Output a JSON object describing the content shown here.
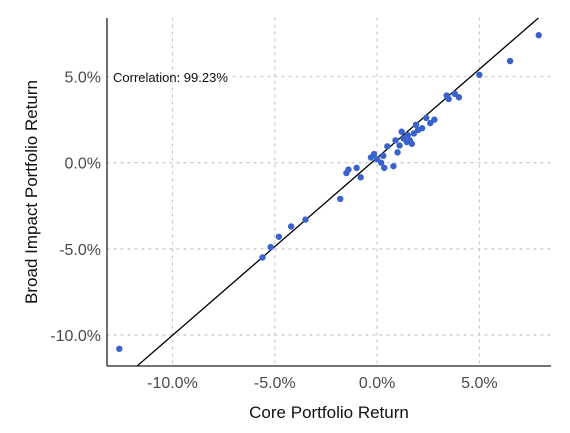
{
  "chart_data": {
    "type": "scatter",
    "xlabel": "Core Portfolio Return",
    "ylabel": "Broad Impact Portfolio Return",
    "annotation": "Correlation: 99.23%",
    "xlim": [
      -13.2,
      8.5
    ],
    "ylim": [
      -11.8,
      8.4
    ],
    "x_ticks": [
      {
        "value": -10,
        "label": "-10.0%"
      },
      {
        "value": -5,
        "label": "-5.0%"
      },
      {
        "value": 0,
        "label": "0.0%"
      },
      {
        "value": 5,
        "label": "5.0%"
      }
    ],
    "y_ticks": [
      {
        "value": -10,
        "label": "-10.0%"
      },
      {
        "value": -5,
        "label": "-5.0%"
      },
      {
        "value": 0,
        "label": "0.0%"
      },
      {
        "value": 5,
        "label": "5.0%"
      }
    ],
    "grid": true,
    "regression_line": {
      "slope": 1.03,
      "intercept": 0.28
    },
    "colors": {
      "points": "#3a62cc",
      "line": "#000000",
      "grid": "#c8c8c8"
    },
    "points": [
      {
        "x": -12.6,
        "y": -10.8
      },
      {
        "x": -5.6,
        "y": -5.5
      },
      {
        "x": -5.2,
        "y": -4.9
      },
      {
        "x": -4.8,
        "y": -4.3
      },
      {
        "x": -4.2,
        "y": -3.7
      },
      {
        "x": -3.5,
        "y": -3.3
      },
      {
        "x": -1.8,
        "y": -2.1
      },
      {
        "x": -1.5,
        "y": -0.6
      },
      {
        "x": -1.4,
        "y": -0.4
      },
      {
        "x": -1.0,
        "y": -0.3
      },
      {
        "x": -0.8,
        "y": -0.85
      },
      {
        "x": -0.3,
        "y": 0.3
      },
      {
        "x": -0.15,
        "y": 0.5
      },
      {
        "x": 0.0,
        "y": 0.2
      },
      {
        "x": 0.2,
        "y": 0.0
      },
      {
        "x": 0.3,
        "y": 0.4
      },
      {
        "x": 0.35,
        "y": -0.3
      },
      {
        "x": 0.5,
        "y": 0.95
      },
      {
        "x": 0.8,
        "y": -0.2
      },
      {
        "x": 0.9,
        "y": 1.3
      },
      {
        "x": 1.0,
        "y": 0.6
      },
      {
        "x": 1.1,
        "y": 1.0
      },
      {
        "x": 1.2,
        "y": 1.8
      },
      {
        "x": 1.3,
        "y": 1.4
      },
      {
        "x": 1.45,
        "y": 1.2
      },
      {
        "x": 1.5,
        "y": 1.6
      },
      {
        "x": 1.6,
        "y": 1.3
      },
      {
        "x": 1.7,
        "y": 1.1
      },
      {
        "x": 1.8,
        "y": 1.7
      },
      {
        "x": 1.9,
        "y": 2.2
      },
      {
        "x": 2.0,
        "y": 1.9
      },
      {
        "x": 2.2,
        "y": 2.0
      },
      {
        "x": 2.4,
        "y": 2.6
      },
      {
        "x": 2.6,
        "y": 2.3
      },
      {
        "x": 2.8,
        "y": 2.5
      },
      {
        "x": 3.4,
        "y": 3.9
      },
      {
        "x": 3.5,
        "y": 3.7
      },
      {
        "x": 3.8,
        "y": 4.0
      },
      {
        "x": 4.0,
        "y": 3.8
      },
      {
        "x": 5.0,
        "y": 5.1
      },
      {
        "x": 6.5,
        "y": 5.9
      },
      {
        "x": 7.9,
        "y": 7.4
      }
    ]
  }
}
